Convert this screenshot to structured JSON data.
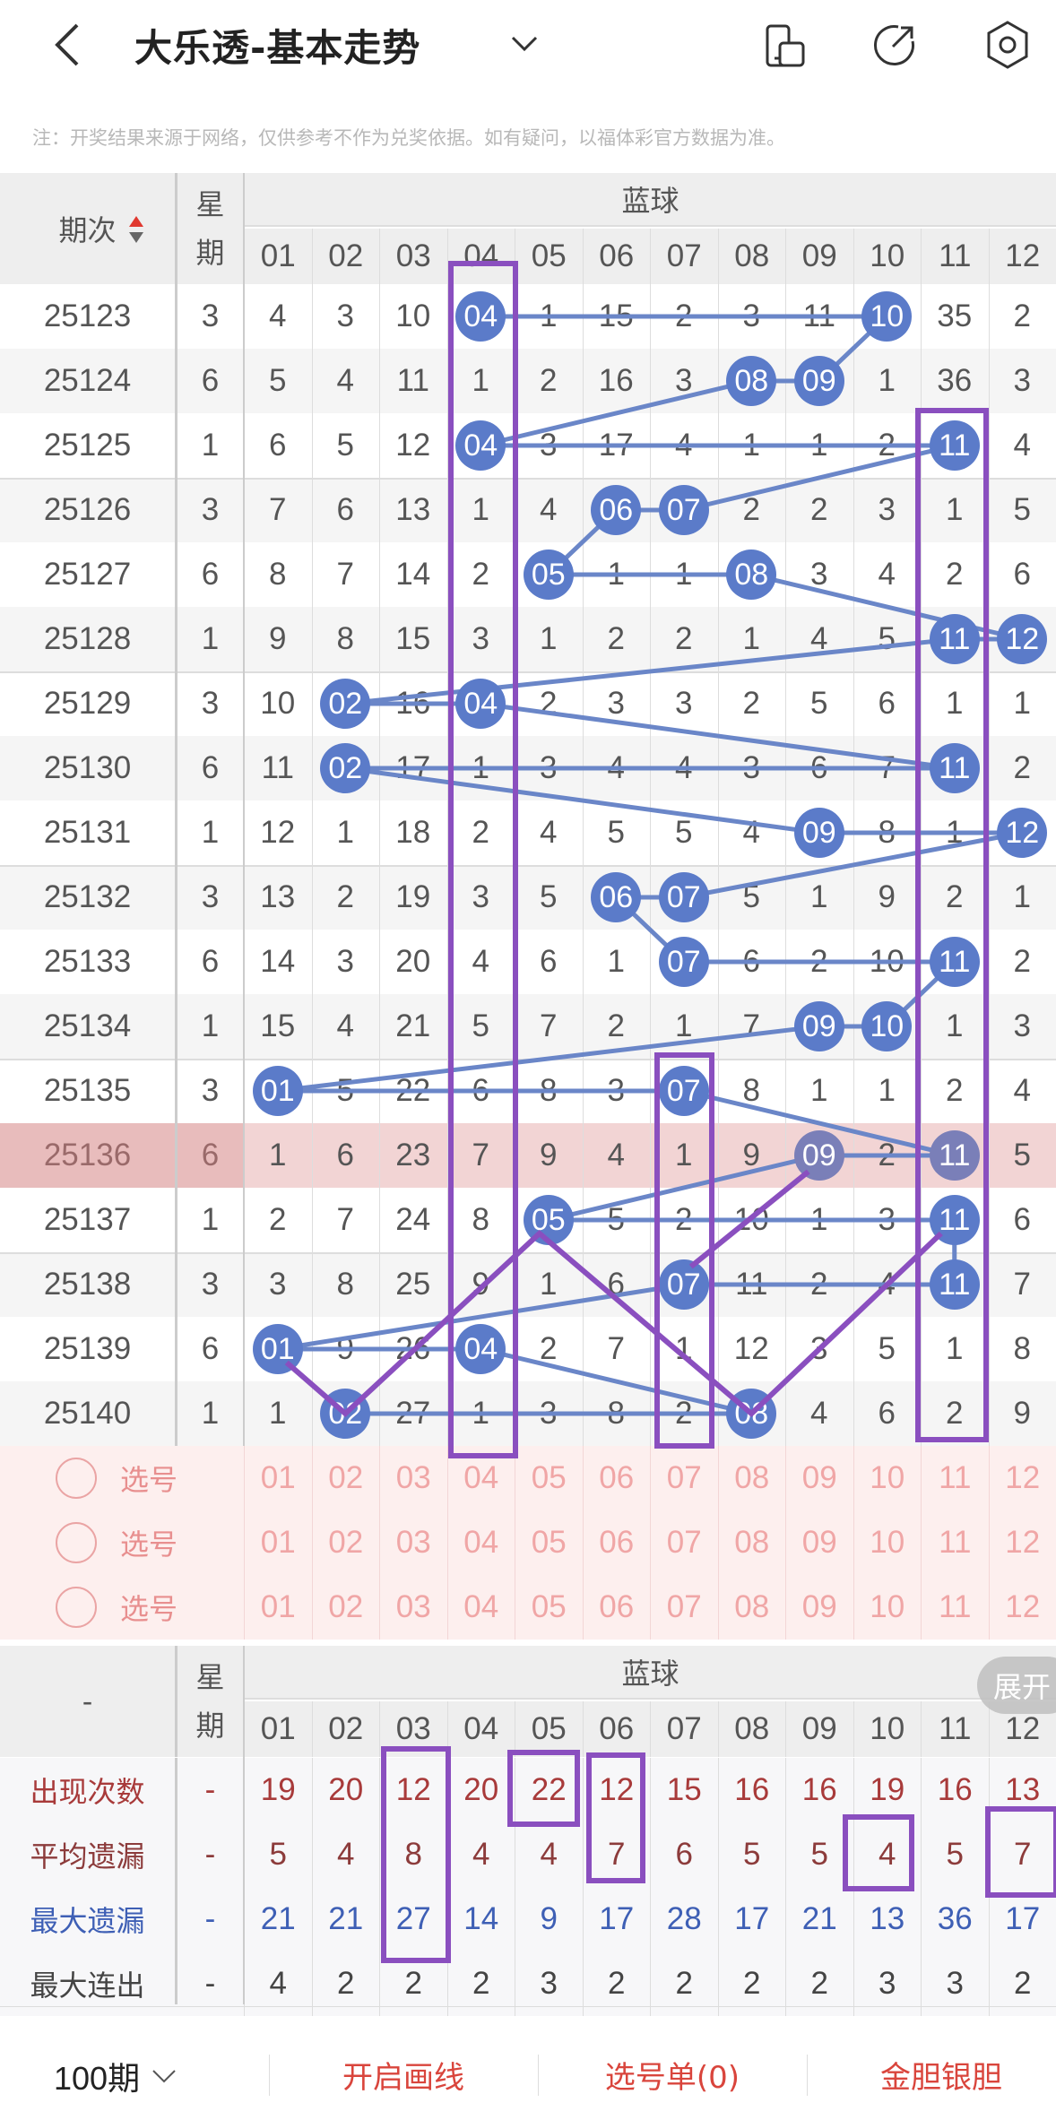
{
  "header": {
    "title": "大乐透-基本走势",
    "icons": [
      "back-icon",
      "chevron-down-icon",
      "phone-layout-icon",
      "share-icon",
      "settings-icon"
    ]
  },
  "note": "注：开奖结果来源于网络，仅供参考不作为兑奖依据。如有疑问，以福体彩官方数据为准。",
  "table": {
    "col_period": "期次",
    "col_week": "星期",
    "group": "蓝球",
    "numbers": [
      "01",
      "02",
      "03",
      "04",
      "05",
      "06",
      "07",
      "08",
      "09",
      "10",
      "11",
      "12"
    ],
    "highlight_period": "25136",
    "rows": [
      {
        "period": "25123",
        "week": "3",
        "cells": [
          "4",
          "3",
          "10",
          "04",
          "1",
          "15",
          "2",
          "3",
          "11",
          "10",
          "35",
          "2"
        ],
        "balls": [
          "04",
          "10"
        ]
      },
      {
        "period": "25124",
        "week": "6",
        "cells": [
          "5",
          "4",
          "11",
          "1",
          "2",
          "16",
          "3",
          "08",
          "09",
          "1",
          "36",
          "3"
        ],
        "balls": [
          "08",
          "09"
        ]
      },
      {
        "period": "25125",
        "week": "1",
        "cells": [
          "6",
          "5",
          "12",
          "04",
          "3",
          "17",
          "4",
          "1",
          "1",
          "2",
          "11",
          "4"
        ],
        "balls": [
          "04",
          "11"
        ]
      },
      {
        "period": "25126",
        "week": "3",
        "cells": [
          "7",
          "6",
          "13",
          "1",
          "4",
          "06",
          "07",
          "2",
          "2",
          "3",
          "1",
          "5"
        ],
        "balls": [
          "06",
          "07"
        ]
      },
      {
        "period": "25127",
        "week": "6",
        "cells": [
          "8",
          "7",
          "14",
          "2",
          "05",
          "1",
          "1",
          "08",
          "3",
          "4",
          "2",
          "6"
        ],
        "balls": [
          "05",
          "08"
        ]
      },
      {
        "period": "25128",
        "week": "1",
        "cells": [
          "9",
          "8",
          "15",
          "3",
          "1",
          "2",
          "2",
          "1",
          "4",
          "5",
          "11",
          "12"
        ],
        "balls": [
          "11",
          "12"
        ]
      },
      {
        "period": "25129",
        "week": "3",
        "cells": [
          "10",
          "02",
          "16",
          "04",
          "2",
          "3",
          "3",
          "2",
          "5",
          "6",
          "1",
          "1"
        ],
        "balls": [
          "02",
          "04"
        ]
      },
      {
        "period": "25130",
        "week": "6",
        "cells": [
          "11",
          "02",
          "17",
          "1",
          "3",
          "4",
          "4",
          "3",
          "6",
          "7",
          "11",
          "2"
        ],
        "balls": [
          "02",
          "11"
        ]
      },
      {
        "period": "25131",
        "week": "1",
        "cells": [
          "12",
          "1",
          "18",
          "2",
          "4",
          "5",
          "5",
          "4",
          "09",
          "8",
          "1",
          "12"
        ],
        "balls": [
          "09",
          "12"
        ]
      },
      {
        "period": "25132",
        "week": "3",
        "cells": [
          "13",
          "2",
          "19",
          "3",
          "5",
          "06",
          "07",
          "5",
          "1",
          "9",
          "2",
          "1"
        ],
        "balls": [
          "06",
          "07"
        ]
      },
      {
        "period": "25133",
        "week": "6",
        "cells": [
          "14",
          "3",
          "20",
          "4",
          "6",
          "1",
          "07",
          "6",
          "2",
          "10",
          "11",
          "2"
        ],
        "balls": [
          "07",
          "11"
        ]
      },
      {
        "period": "25134",
        "week": "1",
        "cells": [
          "15",
          "4",
          "21",
          "5",
          "7",
          "2",
          "1",
          "7",
          "09",
          "10",
          "1",
          "3"
        ],
        "balls": [
          "09",
          "10"
        ]
      },
      {
        "period": "25135",
        "week": "3",
        "cells": [
          "01",
          "5",
          "22",
          "6",
          "8",
          "3",
          "07",
          "8",
          "1",
          "1",
          "2",
          "4"
        ],
        "balls": [
          "01",
          "07"
        ]
      },
      {
        "period": "25136",
        "week": "6",
        "cells": [
          "1",
          "6",
          "23",
          "7",
          "9",
          "4",
          "1",
          "9",
          "09",
          "2",
          "11",
          "5"
        ],
        "balls": [
          "09",
          "11"
        ]
      },
      {
        "period": "25137",
        "week": "1",
        "cells": [
          "2",
          "7",
          "24",
          "8",
          "05",
          "5",
          "2",
          "10",
          "1",
          "3",
          "11",
          "6"
        ],
        "balls": [
          "05",
          "11"
        ]
      },
      {
        "period": "25138",
        "week": "3",
        "cells": [
          "3",
          "8",
          "25",
          "9",
          "1",
          "6",
          "07",
          "11",
          "2",
          "4",
          "11",
          "7"
        ],
        "balls": [
          "07",
          "11"
        ]
      },
      {
        "period": "25139",
        "week": "6",
        "cells": [
          "01",
          "9",
          "26",
          "04",
          "2",
          "7",
          "1",
          "12",
          "3",
          "5",
          "1",
          "8"
        ],
        "balls": [
          "01",
          "04"
        ]
      },
      {
        "period": "25140",
        "week": "1",
        "cells": [
          "1",
          "02",
          "27",
          "1",
          "3",
          "8",
          "2",
          "08",
          "4",
          "6",
          "2",
          "9"
        ],
        "balls": [
          "02",
          "08"
        ]
      }
    ]
  },
  "picker": {
    "label": "选号",
    "rows": 3
  },
  "stats": {
    "col_label": "-",
    "col_week": "星期",
    "group": "蓝球",
    "expand": "展开",
    "rows": [
      {
        "label": "出现次数",
        "week": "-",
        "values": [
          "19",
          "20",
          "12",
          "20",
          "22",
          "12",
          "15",
          "16",
          "16",
          "19",
          "16",
          "13"
        ],
        "color": "#a83a3a"
      },
      {
        "label": "平均遗漏",
        "week": "-",
        "values": [
          "5",
          "4",
          "8",
          "4",
          "4",
          "7",
          "6",
          "5",
          "5",
          "4",
          "5",
          "7"
        ],
        "color": "#8c3b3b"
      },
      {
        "label": "最大遗漏",
        "week": "-",
        "values": [
          "21",
          "21",
          "27",
          "14",
          "9",
          "17",
          "28",
          "17",
          "21",
          "13",
          "36",
          "17"
        ],
        "color": "#3e5fb5"
      },
      {
        "label": "最大连出",
        "week": "-",
        "values": [
          "4",
          "2",
          "2",
          "2",
          "3",
          "2",
          "2",
          "2",
          "2",
          "3",
          "3",
          "2"
        ],
        "color": "#444444"
      }
    ]
  },
  "bottom": {
    "periods": "100期",
    "draw_line": "开启画线",
    "pick_list": "选号单(0)",
    "gold_silver": "金胆银胆"
  },
  "colors": {
    "ball": "#5b7bc9",
    "accent": "#d9453c",
    "annotation": "#8a4fbf",
    "highlight_row": "#f2d4d4"
  }
}
